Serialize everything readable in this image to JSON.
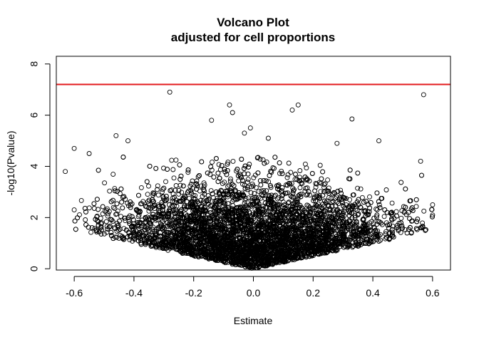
{
  "chart_data": {
    "type": "scatter",
    "title": "Volcano Plot",
    "subtitle": "adjusted for cell proportions",
    "xlabel": "Estimate",
    "ylabel": "-log10(Pvalue)",
    "xlim": [
      -0.66,
      0.66
    ],
    "ylim": [
      -0.05,
      8.3
    ],
    "x_ticks": [
      "-0.6",
      "-0.4",
      "-0.2",
      "0.0",
      "0.2",
      "0.4",
      "0.6"
    ],
    "y_ticks": [
      "0",
      "2",
      "4",
      "6",
      "8"
    ],
    "threshold_line": {
      "y": 7.2,
      "color": "#e31a1c"
    },
    "grid": false,
    "legend": "none",
    "marker": "open-circle",
    "notable_points": [
      {
        "x": -0.28,
        "y": 6.9
      },
      {
        "x": 0.57,
        "y": 6.8
      },
      {
        "x": -0.08,
        "y": 6.4
      },
      {
        "x": -0.07,
        "y": 6.1
      },
      {
        "x": 0.15,
        "y": 6.4
      },
      {
        "x": 0.13,
        "y": 6.2
      },
      {
        "x": 0.33,
        "y": 5.85
      },
      {
        "x": -0.03,
        "y": 5.3
      },
      {
        "x": -0.01,
        "y": 5.5
      },
      {
        "x": 0.56,
        "y": 4.2
      },
      {
        "x": -0.63,
        "y": 3.8
      },
      {
        "x": -0.6,
        "y": 4.7
      },
      {
        "x": -0.42,
        "y": 5.0
      },
      {
        "x": 0.6,
        "y": 2.5
      },
      {
        "x": 0.6,
        "y": 2.1
      },
      {
        "x": -0.6,
        "y": 2.3
      },
      {
        "x": 0.42,
        "y": 5.0
      },
      {
        "x": -0.14,
        "y": 5.8
      },
      {
        "x": 0.05,
        "y": 5.1
      },
      {
        "x": 0.28,
        "y": 4.9
      },
      {
        "x": -0.46,
        "y": 5.2
      },
      {
        "x": -0.55,
        "y": 4.5
      }
    ],
    "bulk_cloud": {
      "description_values": {
        "x_range": [
          -0.6,
          0.6
        ],
        "y_floor_at_x0": 0.0,
        "y_floor_at_x_0.5": 1.4,
        "y_bulk_max": 4.0
      }
    }
  }
}
